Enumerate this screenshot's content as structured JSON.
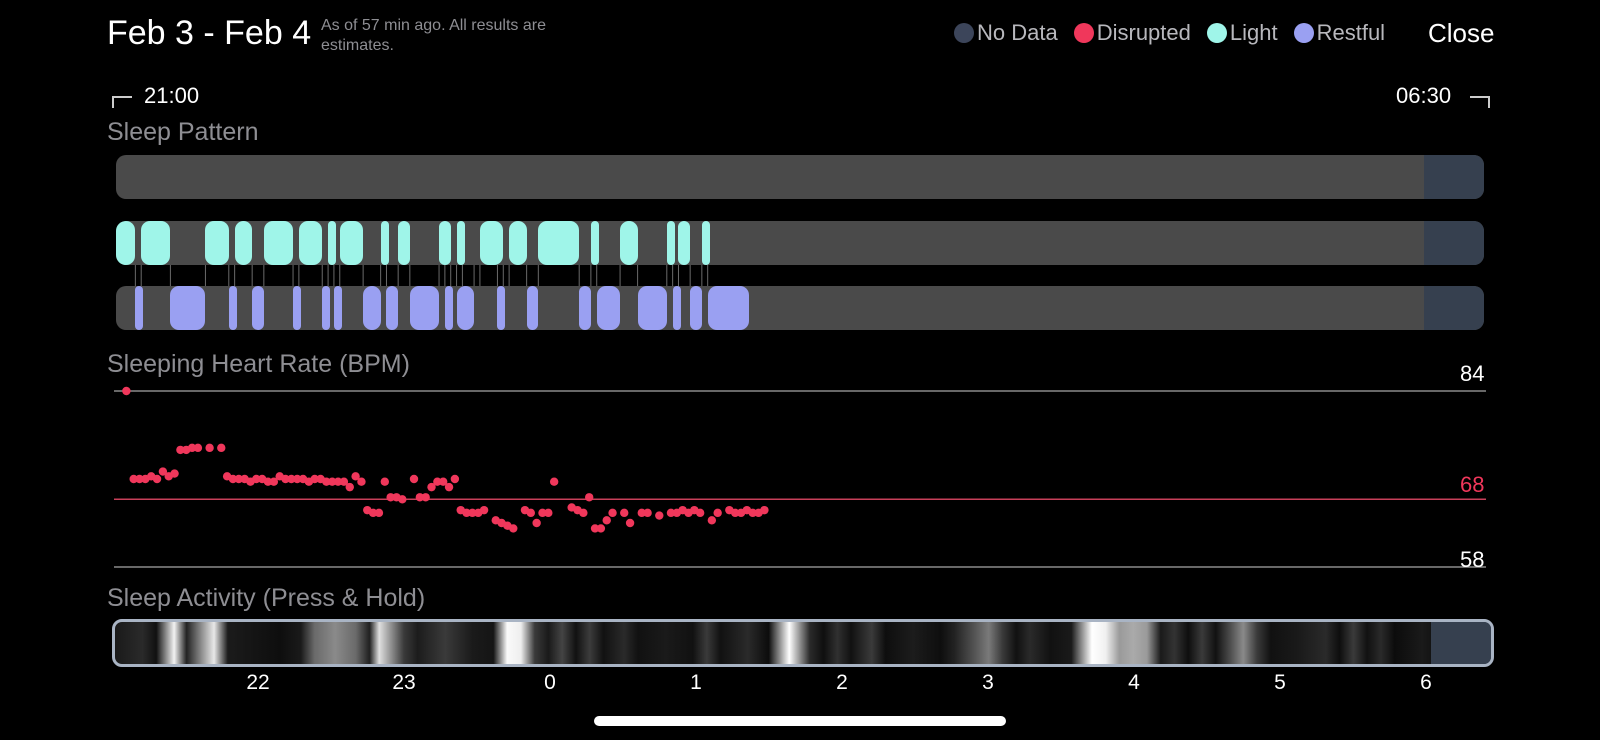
{
  "header": {
    "title": "Feb 3 - Feb 4",
    "subtitle": "As of 57 min ago. All results are estimates.",
    "close_label": "Close"
  },
  "legend": [
    {
      "label": "No Data",
      "color": "#3c455a"
    },
    {
      "label": "Disrupted",
      "color": "#f0375b"
    },
    {
      "label": "Light",
      "color": "#9ff5e9"
    },
    {
      "label": "Restful",
      "color": "#9aa0f2"
    }
  ],
  "time_range": {
    "start": "21:00",
    "end": "06:30"
  },
  "sleep_pattern": {
    "title": "Sleep Pattern",
    "colors": {
      "track": "#4a4a4a",
      "nodata": "#36404f",
      "light": "#9ff5e9",
      "restful": "#9aa0f2"
    },
    "light_segments": [
      [
        21.0,
        21.16
      ],
      [
        21.2,
        21.4
      ],
      [
        21.64,
        21.8
      ],
      [
        21.84,
        21.96
      ],
      [
        22.04,
        22.24
      ],
      [
        22.28,
        22.44
      ],
      [
        22.48,
        22.52
      ],
      [
        22.56,
        22.72
      ],
      [
        22.84,
        22.88
      ],
      [
        22.96,
        23.04
      ],
      [
        23.24,
        23.32
      ],
      [
        23.36,
        23.4
      ],
      [
        23.52,
        23.68
      ],
      [
        23.72,
        23.84
      ],
      [
        23.92,
        24.2
      ],
      [
        24.28,
        24.32
      ],
      [
        24.48,
        24.6
      ],
      [
        24.8,
        24.84
      ],
      [
        24.88,
        24.96
      ],
      [
        25.04,
        25.08
      ]
    ],
    "restful_segments": [
      [
        21.16,
        21.2
      ],
      [
        21.4,
        21.64
      ],
      [
        21.8,
        21.84
      ],
      [
        21.96,
        22.04
      ],
      [
        22.24,
        22.28
      ],
      [
        22.44,
        22.48
      ],
      [
        22.52,
        22.56
      ],
      [
        22.72,
        22.84
      ],
      [
        22.88,
        22.96
      ],
      [
        23.04,
        23.24
      ],
      [
        23.28,
        23.32
      ],
      [
        23.36,
        23.48
      ],
      [
        23.64,
        23.68
      ],
      [
        23.84,
        23.92
      ],
      [
        24.2,
        24.28
      ],
      [
        24.32,
        24.48
      ],
      [
        24.6,
        24.8
      ],
      [
        24.84,
        24.88
      ],
      [
        24.96,
        25.04
      ],
      [
        25.08,
        25.36
      ]
    ]
  },
  "heart_rate": {
    "title": "Sleeping Heart Rate (BPM)",
    "max_label": "84",
    "avg_label": "68",
    "min_label": "58",
    "point_color": "#f0375b",
    "chart_data": {
      "type": "scatter",
      "ylim": [
        58,
        84
      ],
      "reference_lines": [
        84,
        68,
        58
      ],
      "points": [
        [
          21.03,
          84
        ],
        [
          21.08,
          71
        ],
        [
          21.12,
          71
        ],
        [
          21.16,
          71
        ],
        [
          21.2,
          71.4
        ],
        [
          21.24,
          71
        ],
        [
          21.28,
          72.1
        ],
        [
          21.32,
          71.4
        ],
        [
          21.36,
          71.8
        ],
        [
          21.4,
          75.3
        ],
        [
          21.44,
          75.3
        ],
        [
          21.48,
          75.6
        ],
        [
          21.52,
          75.6
        ],
        [
          21.6,
          75.6
        ],
        [
          21.68,
          75.6
        ],
        [
          21.72,
          71.4
        ],
        [
          21.76,
          71
        ],
        [
          21.8,
          71
        ],
        [
          21.84,
          71
        ],
        [
          21.88,
          70.6
        ],
        [
          21.92,
          71
        ],
        [
          21.96,
          71
        ],
        [
          22.0,
          70.6
        ],
        [
          22.04,
          70.6
        ],
        [
          22.08,
          71.4
        ],
        [
          22.12,
          71
        ],
        [
          22.16,
          71
        ],
        [
          22.2,
          71
        ],
        [
          22.24,
          71
        ],
        [
          22.28,
          70.6
        ],
        [
          22.32,
          71
        ],
        [
          22.36,
          71
        ],
        [
          22.4,
          70.6
        ],
        [
          22.44,
          70.6
        ],
        [
          22.48,
          70.6
        ],
        [
          22.52,
          70.6
        ],
        [
          22.56,
          69.8
        ],
        [
          22.6,
          71.4
        ],
        [
          22.64,
          70.6
        ],
        [
          22.68,
          66.4
        ],
        [
          22.72,
          66
        ],
        [
          22.76,
          66
        ],
        [
          22.8,
          70.6
        ],
        [
          22.84,
          68.3
        ],
        [
          22.88,
          68.3
        ],
        [
          22.92,
          68
        ],
        [
          23.0,
          71
        ],
        [
          23.04,
          68.3
        ],
        [
          23.08,
          68.3
        ],
        [
          23.12,
          69.8
        ],
        [
          23.16,
          70.6
        ],
        [
          23.2,
          70.6
        ],
        [
          23.24,
          69.8
        ],
        [
          23.28,
          71
        ],
        [
          23.32,
          66.4
        ],
        [
          23.36,
          66
        ],
        [
          23.4,
          66
        ],
        [
          23.44,
          66
        ],
        [
          23.48,
          66.4
        ],
        [
          23.56,
          64.9
        ],
        [
          23.6,
          64.5
        ],
        [
          23.64,
          64.1
        ],
        [
          23.68,
          63.7
        ],
        [
          23.76,
          66.4
        ],
        [
          23.8,
          66
        ],
        [
          23.84,
          64.5
        ],
        [
          23.88,
          66
        ],
        [
          23.92,
          66
        ],
        [
          23.96,
          70.6
        ],
        [
          24.08,
          66.8
        ],
        [
          24.12,
          66.4
        ],
        [
          24.16,
          66
        ],
        [
          24.2,
          68.3
        ],
        [
          24.24,
          63.7
        ],
        [
          24.28,
          63.7
        ],
        [
          24.32,
          64.9
        ],
        [
          24.36,
          66
        ],
        [
          24.44,
          66
        ],
        [
          24.48,
          64.5
        ],
        [
          24.56,
          66
        ],
        [
          24.6,
          66
        ],
        [
          24.68,
          65.6
        ],
        [
          24.76,
          66
        ],
        [
          24.8,
          66
        ],
        [
          24.84,
          66.4
        ],
        [
          24.88,
          66
        ],
        [
          24.92,
          66.4
        ],
        [
          24.96,
          66
        ],
        [
          25.04,
          64.9
        ],
        [
          25.08,
          66
        ],
        [
          25.16,
          66.4
        ],
        [
          25.2,
          66
        ],
        [
          25.24,
          66
        ],
        [
          25.28,
          66.4
        ],
        [
          25.32,
          66
        ],
        [
          25.36,
          66
        ],
        [
          25.4,
          66.4
        ]
      ]
    }
  },
  "activity": {
    "title": "Sleep Activity (Press & Hold)"
  },
  "x_axis": {
    "ticks": [
      "22",
      "23",
      "0",
      "1",
      "2",
      "3",
      "4",
      "5",
      "6"
    ]
  }
}
